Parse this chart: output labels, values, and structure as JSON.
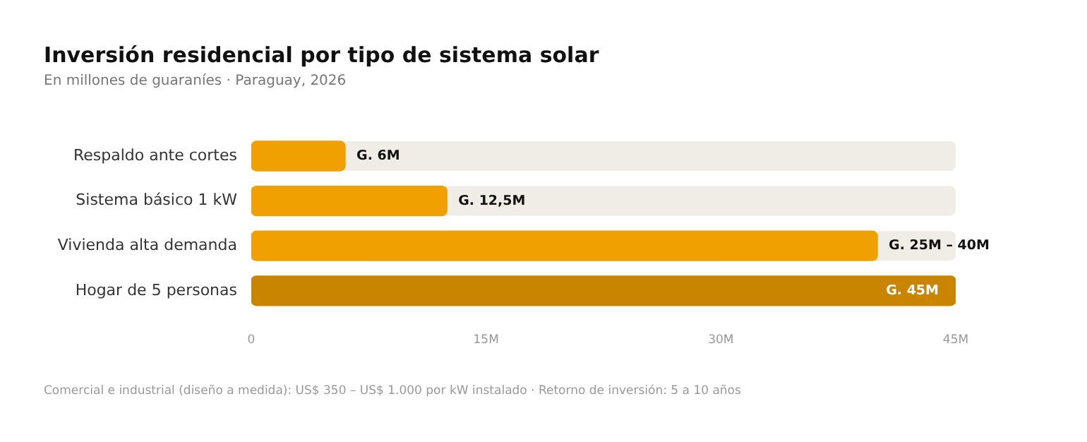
{
  "chart_data": {
    "type": "bar",
    "orientation": "horizontal",
    "title": "Inversión residencial por tipo de sistema solar",
    "subtitle": "En millones de guaraníes · Paraguay, 2026",
    "categories": [
      "Respaldo ante cortes",
      "Sistema básico 1 kW",
      "Vivienda alta demanda",
      "Hogar de 5 personas"
    ],
    "values": [
      6,
      12.5,
      40,
      45
    ],
    "colors": [
      "#f0a000",
      "#f0a000",
      "#f0a000",
      "#c98500"
    ],
    "value_labels": [
      "G. 6M",
      "G. 12,5M",
      "G. 25M – 40M",
      "G. 45M"
    ],
    "xlim": [
      0,
      45
    ],
    "xticks": [
      {
        "value": 0,
        "label": "0"
      },
      {
        "value": 15,
        "label": "15M"
      },
      {
        "value": 30,
        "label": "30M"
      },
      {
        "value": 45,
        "label": "45M"
      }
    ],
    "grid": false,
    "legend": false,
    "annotations": [
      "Comercial e industrial (diseño a medida): US$ 350 – US$ 1.000 por kW instalado · Retorno de inversión: 5 a 10 años"
    ]
  }
}
